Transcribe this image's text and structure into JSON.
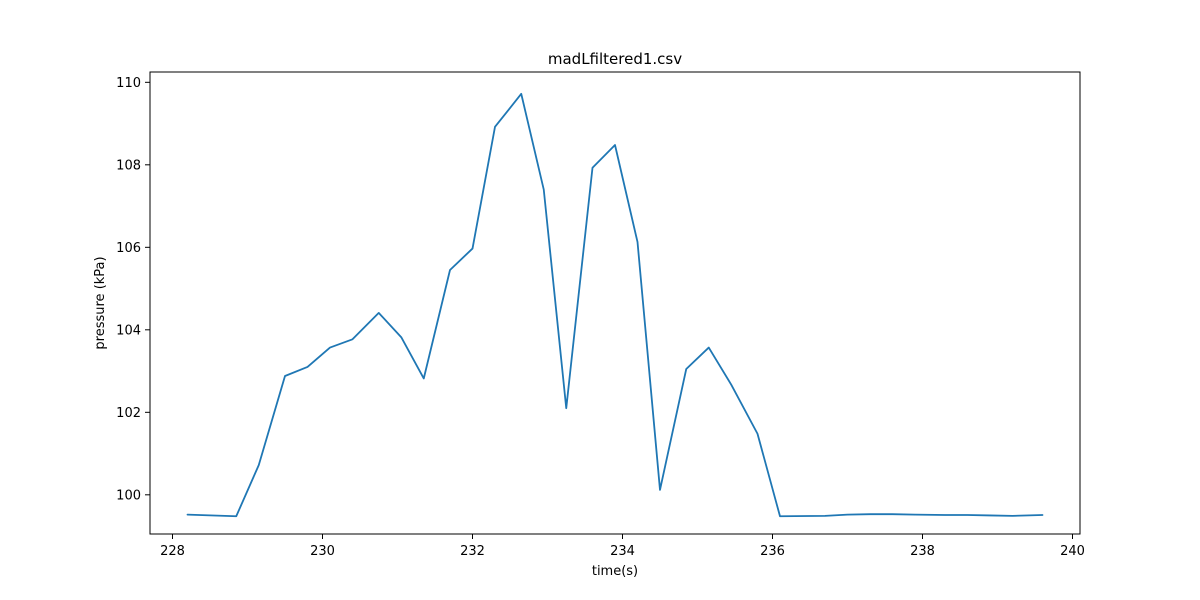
{
  "chart_data": {
    "type": "line",
    "title": "madLfiltered1.csv",
    "xlabel": "time(s)",
    "ylabel": "pressure (kPa)",
    "xlim": [
      227.7,
      240.1
    ],
    "ylim": [
      99.05,
      110.25
    ],
    "xticks": [
      228,
      230,
      232,
      234,
      236,
      238,
      240
    ],
    "yticks": [
      100,
      102,
      104,
      106,
      108,
      110
    ],
    "grid": false,
    "series": [
      {
        "color": "#1f77b4",
        "x": [
          228.2,
          228.85,
          229.15,
          229.5,
          229.8,
          230.1,
          230.4,
          230.75,
          231.05,
          231.35,
          231.7,
          232.0,
          232.3,
          232.65,
          232.95,
          233.25,
          233.6,
          233.9,
          234.2,
          234.5,
          234.85,
          235.15,
          235.45,
          235.8,
          236.1,
          236.7,
          237.0,
          237.3,
          237.6,
          237.9,
          238.3,
          238.6,
          238.9,
          239.2,
          239.6
        ],
        "y": [
          99.52,
          99.48,
          100.72,
          102.88,
          103.1,
          103.57,
          103.77,
          104.41,
          103.82,
          102.82,
          105.45,
          105.97,
          108.92,
          109.72,
          107.4,
          102.1,
          107.93,
          108.48,
          106.13,
          100.12,
          103.05,
          103.57,
          102.67,
          101.48,
          99.48,
          99.49,
          99.52,
          99.53,
          99.53,
          99.52,
          99.51,
          99.51,
          99.5,
          99.49,
          99.51
        ]
      }
    ]
  }
}
